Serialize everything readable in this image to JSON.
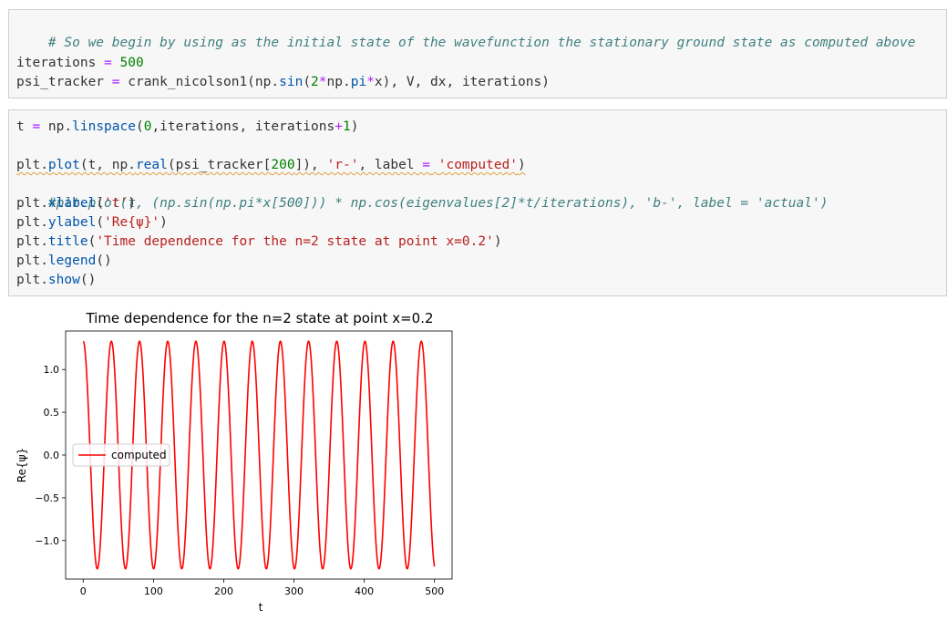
{
  "cell1": {
    "comment": "# So we begin by using as the initial state of the wavefunction the stationary ground state as computed above",
    "line2_var": "iterations",
    "line2_op": " = ",
    "line2_num": "500",
    "line3_a": "psi_tracker ",
    "line3_op": "=",
    "line3_b": " crank_nicolson1(np.",
    "line3_fn": "sin",
    "line3_c": "(",
    "line3_num": "2",
    "line3_op2": "*",
    "line3_d": "np.",
    "line3_pi": "pi",
    "line3_op3": "*",
    "line3_e": "x), V, dx, iterations)"
  },
  "cell2": {
    "l1_a": "t ",
    "l1_op": "=",
    "l1_b": " np.",
    "l1_fn": "linspace",
    "l1_c": "(",
    "l1_n0": "0",
    "l1_d": ",iterations, iterations",
    "l1_op2": "+",
    "l1_n1": "1",
    "l1_e": ")",
    "l2_a": "plt.",
    "l2_fn": "plot",
    "l2_b": "(t, np.",
    "l2_fn2": "real",
    "l2_c": "(psi_tracker[",
    "l2_n": "200",
    "l2_d": "]), ",
    "l2_s1": "'r-'",
    "l2_e": ", label ",
    "l2_op": "=",
    "l2_f": " ",
    "l2_s2": "'computed'",
    "l2_g": ")",
    "l3_comment": "#plt.plot(t, (np.sin(np.pi*x[500])) * np.cos(eigenvalues[2]*t/iterations), 'b-', label = 'actual')",
    "l4_a": "plt.",
    "l4_fn": "xlabel",
    "l4_b": "(",
    "l4_s": "'t'",
    "l4_c": ")",
    "l5_a": "plt.",
    "l5_fn": "ylabel",
    "l5_b": "(",
    "l5_s": "'Re{ψ}'",
    "l5_c": ")",
    "l6_a": "plt.",
    "l6_fn": "title",
    "l6_b": "(",
    "l6_s": "'Time dependence for the n=2 state at point x=0.2'",
    "l6_c": ")",
    "l7_a": "plt.",
    "l7_fn": "legend",
    "l7_b": "()",
    "l8_a": "plt.",
    "l8_fn": "show",
    "l8_b": "()"
  },
  "chart_data": {
    "type": "line",
    "title": "Time dependence for the n=2 state at point x=0.2",
    "xlabel": "t",
    "ylabel": "Re{ψ}",
    "xlim": [
      -25,
      525
    ],
    "ylim": [
      -1.45,
      1.45
    ],
    "xticks": [
      0,
      100,
      200,
      300,
      400,
      500
    ],
    "yticks": [
      1.0,
      0.5,
      0.0,
      -0.5,
      -1.0
    ],
    "ytick_labels": [
      "1.0",
      "0.5",
      "0.0",
      "−0.5",
      "−1.0"
    ],
    "grid": false,
    "legend_position": "center-left",
    "series": [
      {
        "name": "computed",
        "color": "#ff0000",
        "style": "r-",
        "amplitude": 1.33,
        "period": 40.1,
        "x_start": 0,
        "x_end": 500
      }
    ]
  }
}
